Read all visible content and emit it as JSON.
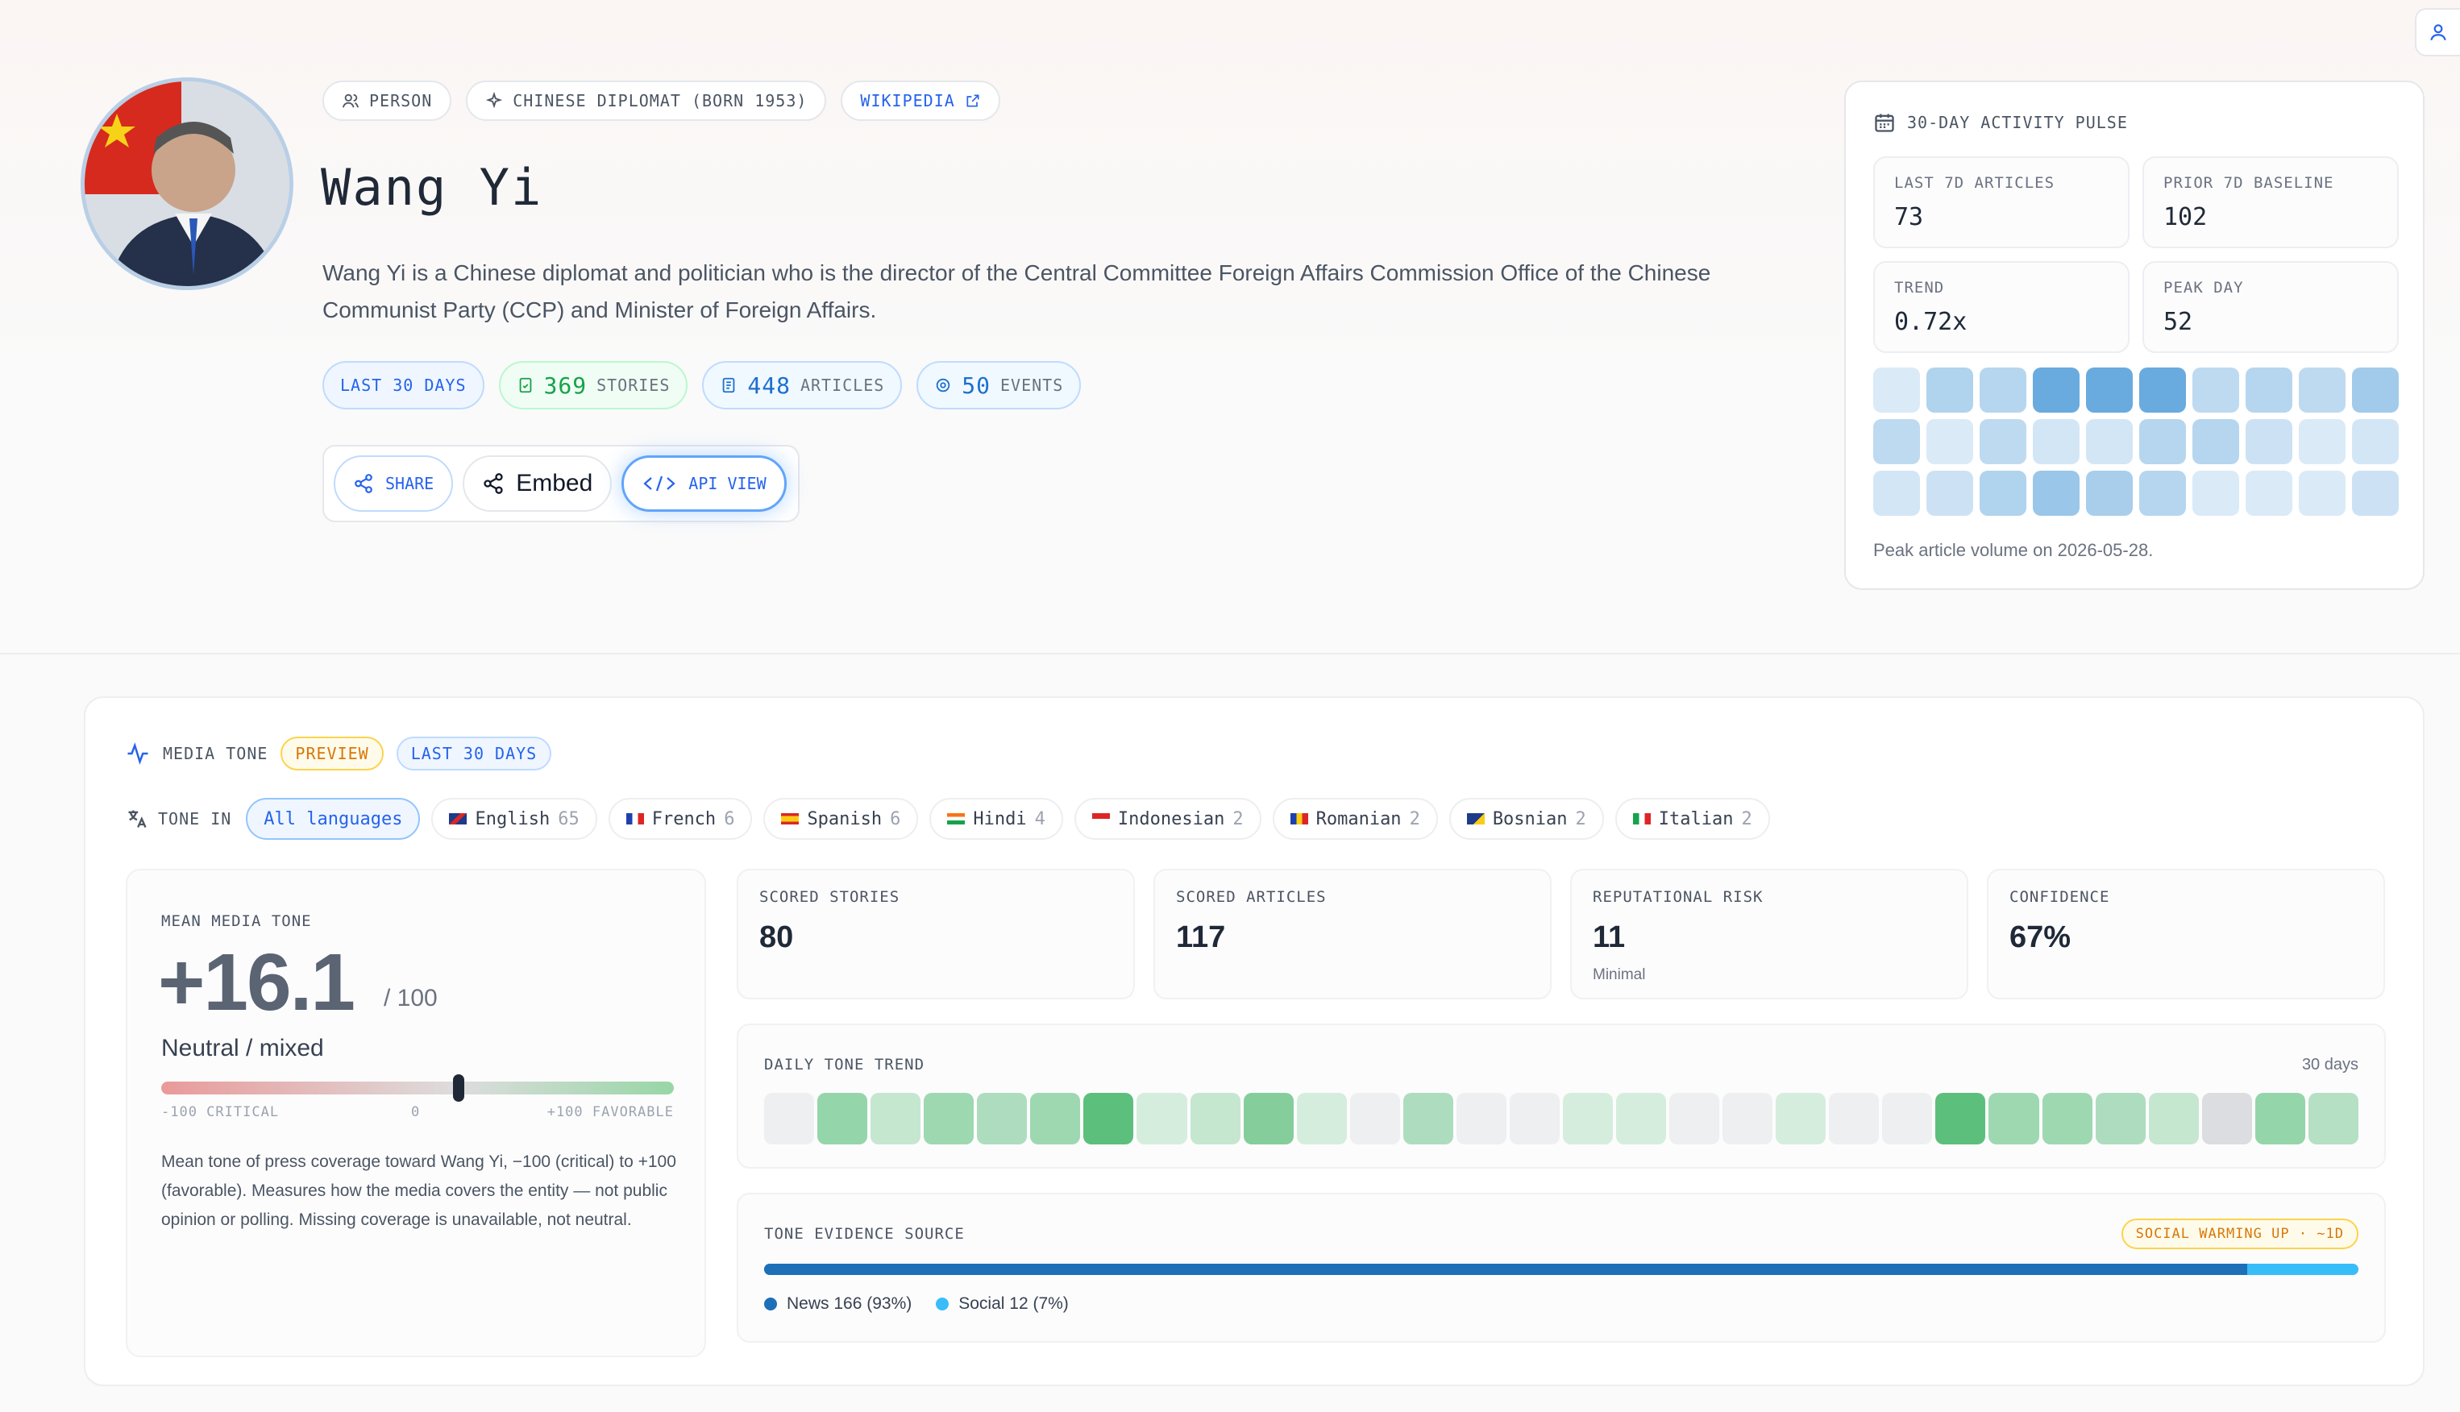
{
  "profile": {
    "type_label": "PERSON",
    "role_label": "CHINESE DIPLOMAT (BORN 1953)",
    "wiki_label": "WIKIPEDIA",
    "name": "Wang Yi",
    "description": "Wang Yi is a Chinese diplomat and politician who is the director of the Central Committee Foreign Affairs Commission Office of the Chinese Communist Party (CCP) and Minister of Foreign Affairs."
  },
  "stats": {
    "period": "LAST 30 DAYS",
    "stories": {
      "value": "369",
      "label": "STORIES"
    },
    "articles": {
      "value": "448",
      "label": "ARTICLES"
    },
    "events": {
      "value": "50",
      "label": "EVENTS"
    }
  },
  "actions": {
    "share": "SHARE",
    "embed": "Embed",
    "api": "API VIEW"
  },
  "pulse": {
    "title": "30-DAY ACTIVITY PULSE",
    "last7_label": "LAST 7D ARTICLES",
    "last7_value": "73",
    "prior7_label": "PRIOR 7D BASELINE",
    "prior7_value": "102",
    "trend_label": "TREND",
    "trend_value": "0.72x",
    "peak_label": "PEAK DAY",
    "peak_value": "52",
    "heat_levels": [
      0.1,
      0.4,
      0.35,
      0.9,
      0.9,
      0.9,
      0.3,
      0.35,
      0.3,
      0.5,
      0.3,
      0.1,
      0.3,
      0.15,
      0.15,
      0.35,
      0.35,
      0.2,
      0.1,
      0.15,
      0.15,
      0.2,
      0.4,
      0.55,
      0.45,
      0.35,
      0.1,
      0.1,
      0.1,
      0.2
    ],
    "footer": "Peak article volume on 2026-05-28."
  },
  "tone": {
    "title": "MEDIA TONE",
    "preview": "PREVIEW",
    "period": "LAST 30 DAYS",
    "tone_in": "TONE IN",
    "languages": [
      {
        "name": "All languages",
        "count": "",
        "flag": ""
      },
      {
        "name": "English",
        "count": "65",
        "flag": "gb"
      },
      {
        "name": "French",
        "count": "6",
        "flag": "fr"
      },
      {
        "name": "Spanish",
        "count": "6",
        "flag": "es"
      },
      {
        "name": "Hindi",
        "count": "4",
        "flag": "in"
      },
      {
        "name": "Indonesian",
        "count": "2",
        "flag": "id"
      },
      {
        "name": "Romanian",
        "count": "2",
        "flag": "ro"
      },
      {
        "name": "Bosnian",
        "count": "2",
        "flag": "ba"
      },
      {
        "name": "Italian",
        "count": "2",
        "flag": "it"
      }
    ],
    "mean_label": "MEAN MEDIA TONE",
    "mean_value": "+16.1",
    "mean_denom": "/ 100",
    "mean_value_numeric": 16.1,
    "sentiment": "Neutral / mixed",
    "scale_min": "-100 CRITICAL",
    "scale_mid": "0",
    "scale_max": "+100 FAVORABLE",
    "note": "Mean tone of press coverage toward Wang Yi, −100 (critical) to +100 (favorable). Measures how the media covers the entity — not public opinion or polling. Missing coverage is unavailable, not neutral.",
    "scored_stories_label": "SCORED STORIES",
    "scored_stories": "80",
    "scored_articles_label": "SCORED ARTICLES",
    "scored_articles": "117",
    "risk_label": "REPUTATIONAL RISK",
    "risk": "11",
    "risk_sub": "Minimal",
    "confidence_label": "CONFIDENCE",
    "confidence": "67%",
    "trend_label": "DAILY TONE TREND",
    "trend_days": "30 days",
    "trend_levels": [
      0,
      0.5,
      0.2,
      0.45,
      0.35,
      0.45,
      0.85,
      0.1,
      0.2,
      0.6,
      0.1,
      0,
      0.35,
      0,
      0,
      0.1,
      0.1,
      0,
      0,
      0.1,
      0,
      0,
      0.85,
      0.45,
      0.45,
      0.35,
      0.2,
      -0.1,
      0.5,
      0.3
    ],
    "evidence_label": "TONE EVIDENCE SOURCE",
    "warning": "SOCIAL WARMING UP · ~1D",
    "news_label": "News 166 (93%)",
    "social_label": "Social 12 (7%)",
    "news_share": 0.93
  },
  "colors": {
    "accent": "#2563eb",
    "positive": "#16a34a",
    "warning": "#d97706"
  }
}
